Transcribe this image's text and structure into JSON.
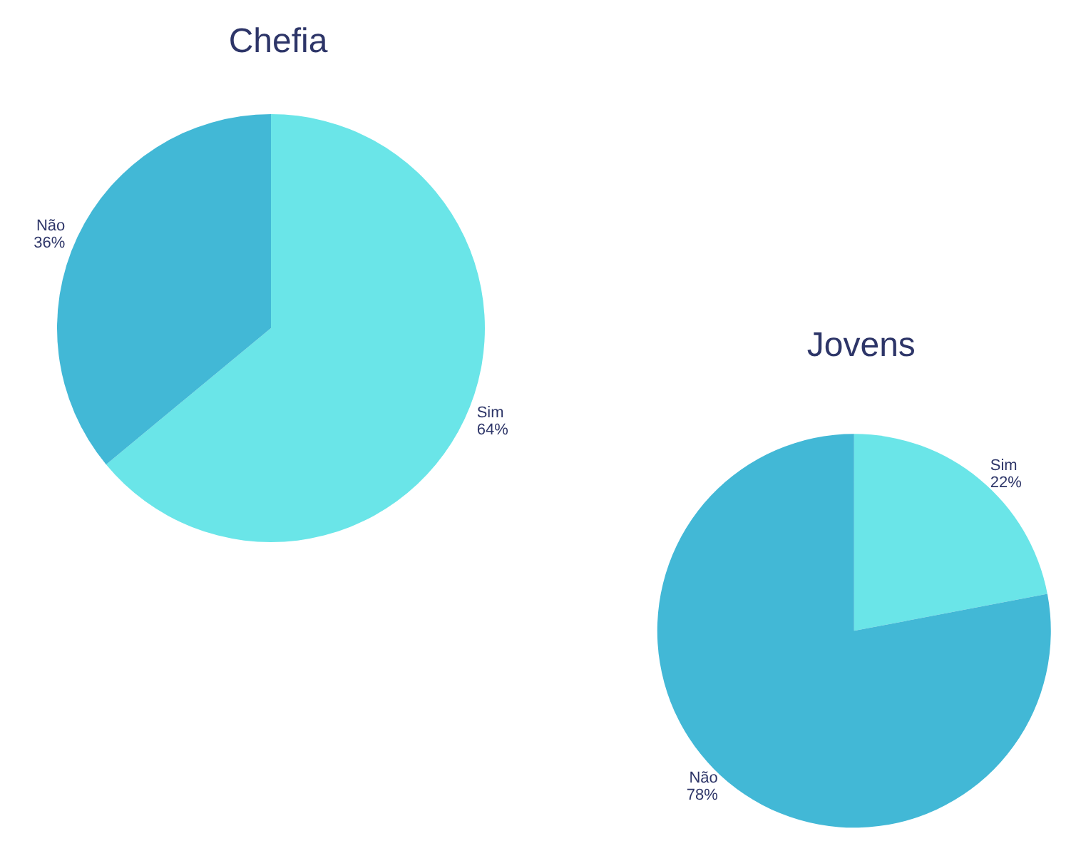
{
  "chart_data": [
    {
      "type": "pie",
      "title": "Chefia",
      "categories": [
        "Sim",
        "Não"
      ],
      "values": [
        64,
        36
      ],
      "colors": [
        "#6ae5e8",
        "#42b8d6"
      ],
      "value_labels": [
        "64%",
        "36%"
      ]
    },
    {
      "type": "pie",
      "title": "Jovens",
      "categories": [
        "Sim",
        "Não"
      ],
      "values": [
        22,
        78
      ],
      "colors": [
        "#6ae5e8",
        "#42b8d6"
      ],
      "value_labels": [
        "22%",
        "78%"
      ]
    }
  ]
}
